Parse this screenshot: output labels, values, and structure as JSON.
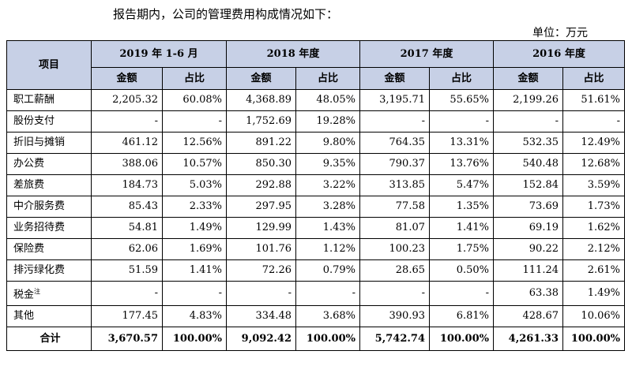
{
  "intro": "报告期内，公司的管理费用构成情况如下：",
  "unit": "单位：万元",
  "headers": {
    "item": "项目",
    "periods": [
      "2019 年 1-6 月",
      "2018 年度",
      "2017 年度",
      "2016 年度"
    ],
    "amount": "金额",
    "ratio": "占比"
  },
  "rows": [
    {
      "label": "职工薪酬",
      "note": "",
      "values": [
        "2,205.32",
        "60.08%",
        "4,368.89",
        "48.05%",
        "3,195.71",
        "55.65%",
        "2,199.26",
        "51.61%"
      ]
    },
    {
      "label": "股份支付",
      "note": "",
      "values": [
        "-",
        "-",
        "1,752.69",
        "19.28%",
        "-",
        "-",
        "-",
        "-"
      ]
    },
    {
      "label": "折旧与摊销",
      "note": "",
      "values": [
        "461.12",
        "12.56%",
        "891.22",
        "9.80%",
        "764.35",
        "13.31%",
        "532.35",
        "12.49%"
      ]
    },
    {
      "label": "办公费",
      "note": "",
      "values": [
        "388.06",
        "10.57%",
        "850.30",
        "9.35%",
        "790.37",
        "13.76%",
        "540.48",
        "12.68%"
      ]
    },
    {
      "label": "差旅费",
      "note": "",
      "values": [
        "184.73",
        "5.03%",
        "292.88",
        "3.22%",
        "313.85",
        "5.47%",
        "152.84",
        "3.59%"
      ]
    },
    {
      "label": "中介服务费",
      "note": "",
      "values": [
        "85.43",
        "2.33%",
        "297.95",
        "3.28%",
        "77.58",
        "1.35%",
        "73.69",
        "1.73%"
      ]
    },
    {
      "label": "业务招待费",
      "note": "",
      "values": [
        "54.81",
        "1.49%",
        "129.99",
        "1.43%",
        "81.07",
        "1.41%",
        "69.19",
        "1.62%"
      ]
    },
    {
      "label": "保险费",
      "note": "",
      "values": [
        "62.06",
        "1.69%",
        "101.76",
        "1.12%",
        "100.23",
        "1.75%",
        "90.22",
        "2.12%"
      ]
    },
    {
      "label": "排污绿化费",
      "note": "",
      "values": [
        "51.59",
        "1.41%",
        "72.26",
        "0.79%",
        "28.65",
        "0.50%",
        "111.24",
        "2.61%"
      ]
    },
    {
      "label": "税金",
      "note": "注",
      "values": [
        "-",
        "-",
        "-",
        "-",
        "-",
        "-",
        "63.38",
        "1.49%"
      ]
    },
    {
      "label": "其他",
      "note": "",
      "values": [
        "177.45",
        "4.83%",
        "334.48",
        "3.68%",
        "390.93",
        "6.81%",
        "428.67",
        "10.06%"
      ]
    }
  ],
  "total": {
    "label": "合计",
    "values": [
      "3,670.57",
      "100.00%",
      "9,092.42",
      "100.00%",
      "5,742.74",
      "100.00%",
      "4,261.33",
      "100.00%"
    ]
  }
}
